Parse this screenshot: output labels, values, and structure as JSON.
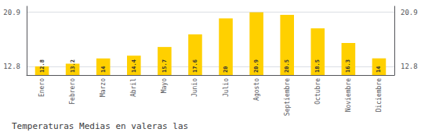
{
  "chart_data": {
    "type": "bar",
    "title": "Temperaturas Medias en valeras las",
    "categories": [
      "Enero",
      "Febrero",
      "Marzo",
      "Abril",
      "Mayo",
      "Junio",
      "Julio",
      "Agosto",
      "Septiembre",
      "Octubre",
      "Noviembre",
      "Diciembre"
    ],
    "values": [
      12.8,
      13.2,
      14.0,
      14.4,
      15.7,
      17.6,
      20.0,
      20.9,
      20.5,
      18.5,
      16.3,
      14.0
    ],
    "color": "#FFD000",
    "ylim": [
      11.5,
      21.8
    ],
    "yticks": [
      12.8,
      20.9
    ],
    "grid": true,
    "data_labels": true
  }
}
